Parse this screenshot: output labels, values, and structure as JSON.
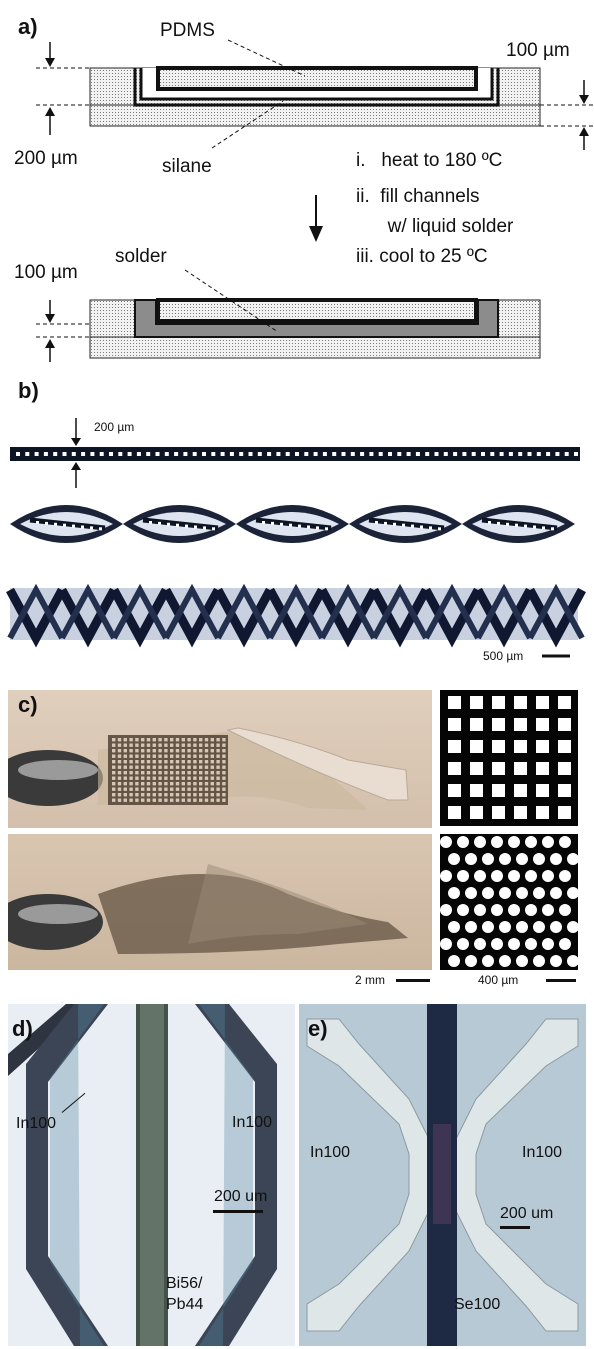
{
  "panel_a": {
    "label": "a)",
    "pdms": "PDMS",
    "silane": "silane",
    "solder": "solder",
    "dim_100_top": "100 µm",
    "dim_200": "200 µm",
    "dim_100_bottom": "100 µm",
    "steps": [
      "i.   heat to 180 ºC",
      "ii.  fill channels",
      "      w/ liquid solder",
      "iii. cool to 25 ºC"
    ]
  },
  "panel_b": {
    "label": "b)",
    "dim": "200 µm",
    "scale": "500 µm"
  },
  "panel_c": {
    "label": "c)",
    "scale_left": "2 mm",
    "scale_right": "400 µm"
  },
  "panel_d": {
    "label": "d)",
    "left_label": "In100",
    "right_label": "In100",
    "center_label_line1": "Bi56/",
    "center_label_line2": "Pb44",
    "scale": "200 um"
  },
  "panel_e": {
    "label": "e)",
    "left_label": "In100",
    "right_label": "In100",
    "center_label": "Se100",
    "scale": "200 um"
  },
  "colors": {
    "pdms_fill": "#e6e6e6",
    "solder_gray": "#8c8c8c",
    "photo_beige": "#d9c7b4",
    "micro_bg_d": "#e9eef4",
    "micro_bg_e": "#b8c9d6"
  }
}
